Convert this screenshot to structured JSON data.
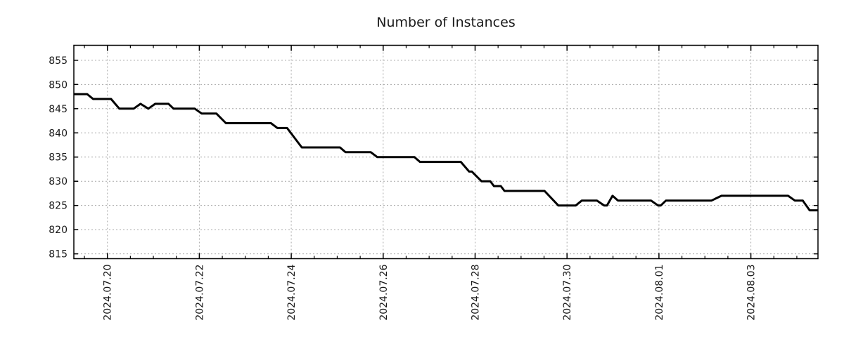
{
  "page": {
    "title": "Number of Instances"
  },
  "colors": {
    "line": "#000000",
    "grid": "#a8a8a8",
    "axis": "#000000",
    "text": "#1a1a1a",
    "background": "#ffffff"
  },
  "chart_data": {
    "type": "line",
    "title": "Number of Instances",
    "legend": "none",
    "grid": "dotted-major",
    "x_axis": {
      "label": "",
      "tick_labels": [
        "2024.07.20",
        "2024.07.22",
        "2024.07.24",
        "2024.07.26",
        "2024.07.28",
        "2024.07.30",
        "2024.08.01",
        "2024.08.03"
      ],
      "tick_positions_days": [
        0,
        2,
        4,
        6,
        8,
        10,
        12,
        14
      ],
      "range_days": [
        -0.73,
        15.46
      ],
      "minor_tick_interval_days": 0.5,
      "tick_label_rotation_deg": -90
    },
    "y_axis": {
      "label": "",
      "ticks": [
        815,
        820,
        825,
        830,
        835,
        840,
        845,
        850,
        855
      ],
      "range": [
        814.0,
        858.1
      ]
    },
    "series": [
      {
        "name": "instances",
        "color": "#000000",
        "points_days_value": [
          [
            -0.73,
            848
          ],
          [
            -0.44,
            848
          ],
          [
            -0.31,
            847
          ],
          [
            0.08,
            847
          ],
          [
            0.26,
            845
          ],
          [
            0.57,
            845
          ],
          [
            0.72,
            846
          ],
          [
            0.89,
            845
          ],
          [
            1.04,
            846
          ],
          [
            1.33,
            846
          ],
          [
            1.44,
            845
          ],
          [
            1.9,
            845
          ],
          [
            2.05,
            844
          ],
          [
            2.37,
            844
          ],
          [
            2.58,
            842
          ],
          [
            3.56,
            842
          ],
          [
            3.7,
            841
          ],
          [
            3.91,
            841
          ],
          [
            4.23,
            837
          ],
          [
            5.06,
            837
          ],
          [
            5.18,
            836
          ],
          [
            5.73,
            836
          ],
          [
            5.87,
            835
          ],
          [
            6.68,
            835
          ],
          [
            6.8,
            834
          ],
          [
            7.69,
            834
          ],
          [
            7.87,
            832
          ],
          [
            7.93,
            832
          ],
          [
            8.14,
            830
          ],
          [
            8.33,
            830
          ],
          [
            8.41,
            829
          ],
          [
            8.56,
            829
          ],
          [
            8.64,
            828
          ],
          [
            9.51,
            828
          ],
          [
            9.81,
            825
          ],
          [
            10.19,
            825
          ],
          [
            10.32,
            826
          ],
          [
            10.65,
            826
          ],
          [
            10.81,
            825
          ],
          [
            10.87,
            825
          ],
          [
            10.99,
            827
          ],
          [
            11.11,
            826
          ],
          [
            11.83,
            826
          ],
          [
            11.98,
            825
          ],
          [
            12.04,
            825
          ],
          [
            12.15,
            826
          ],
          [
            13.14,
            826
          ],
          [
            13.36,
            827
          ],
          [
            14.81,
            827
          ],
          [
            14.96,
            826
          ],
          [
            15.13,
            826
          ],
          [
            15.28,
            824
          ],
          [
            15.46,
            824
          ]
        ]
      }
    ]
  }
}
